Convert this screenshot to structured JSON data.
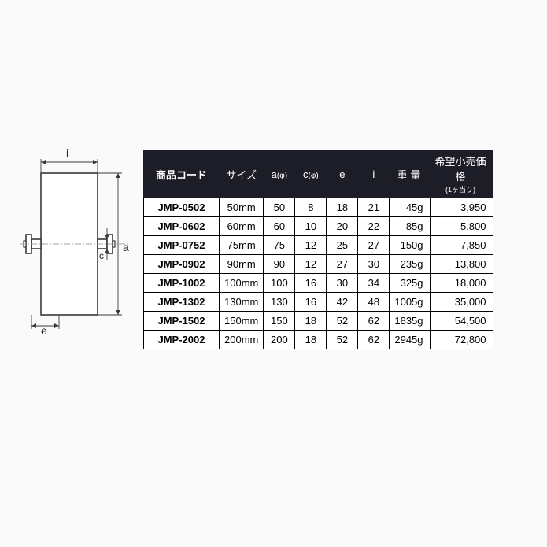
{
  "diagram": {
    "labels": {
      "i": "i",
      "a": "a",
      "c": "c",
      "e": "e"
    },
    "stroke": "#3a3a3a",
    "fill": "#ffffff"
  },
  "table": {
    "headers": {
      "code": "商品コード",
      "size": "サイズ",
      "a": "a",
      "a_sub": "(φ)",
      "c": "c",
      "c_sub": "(φ)",
      "e": "e",
      "i": "i",
      "weight": "重 量",
      "price": "希望小売価格",
      "price_sub": "(1ヶ当り)"
    },
    "rows": [
      {
        "code": "JMP-0502",
        "size": "50mm",
        "a": "50",
        "c": "8",
        "e": "18",
        "i": "21",
        "weight": "45g",
        "price": "3,950"
      },
      {
        "code": "JMP-0602",
        "size": "60mm",
        "a": "60",
        "c": "10",
        "e": "20",
        "i": "22",
        "weight": "85g",
        "price": "5,800"
      },
      {
        "code": "JMP-0752",
        "size": "75mm",
        "a": "75",
        "c": "12",
        "e": "25",
        "i": "27",
        "weight": "150g",
        "price": "7,850"
      },
      {
        "code": "JMP-0902",
        "size": "90mm",
        "a": "90",
        "c": "12",
        "e": "27",
        "i": "30",
        "weight": "235g",
        "price": "13,800"
      },
      {
        "code": "JMP-1002",
        "size": "100mm",
        "a": "100",
        "c": "16",
        "e": "30",
        "i": "34",
        "weight": "325g",
        "price": "18,000"
      },
      {
        "code": "JMP-1302",
        "size": "130mm",
        "a": "130",
        "c": "16",
        "e": "42",
        "i": "48",
        "weight": "1005g",
        "price": "35,000"
      },
      {
        "code": "JMP-1502",
        "size": "150mm",
        "a": "150",
        "c": "18",
        "e": "52",
        "i": "62",
        "weight": "1835g",
        "price": "54,500"
      },
      {
        "code": "JMP-2002",
        "size": "200mm",
        "a": "200",
        "c": "18",
        "e": "52",
        "i": "62",
        "weight": "2945g",
        "price": "72,800"
      }
    ]
  }
}
